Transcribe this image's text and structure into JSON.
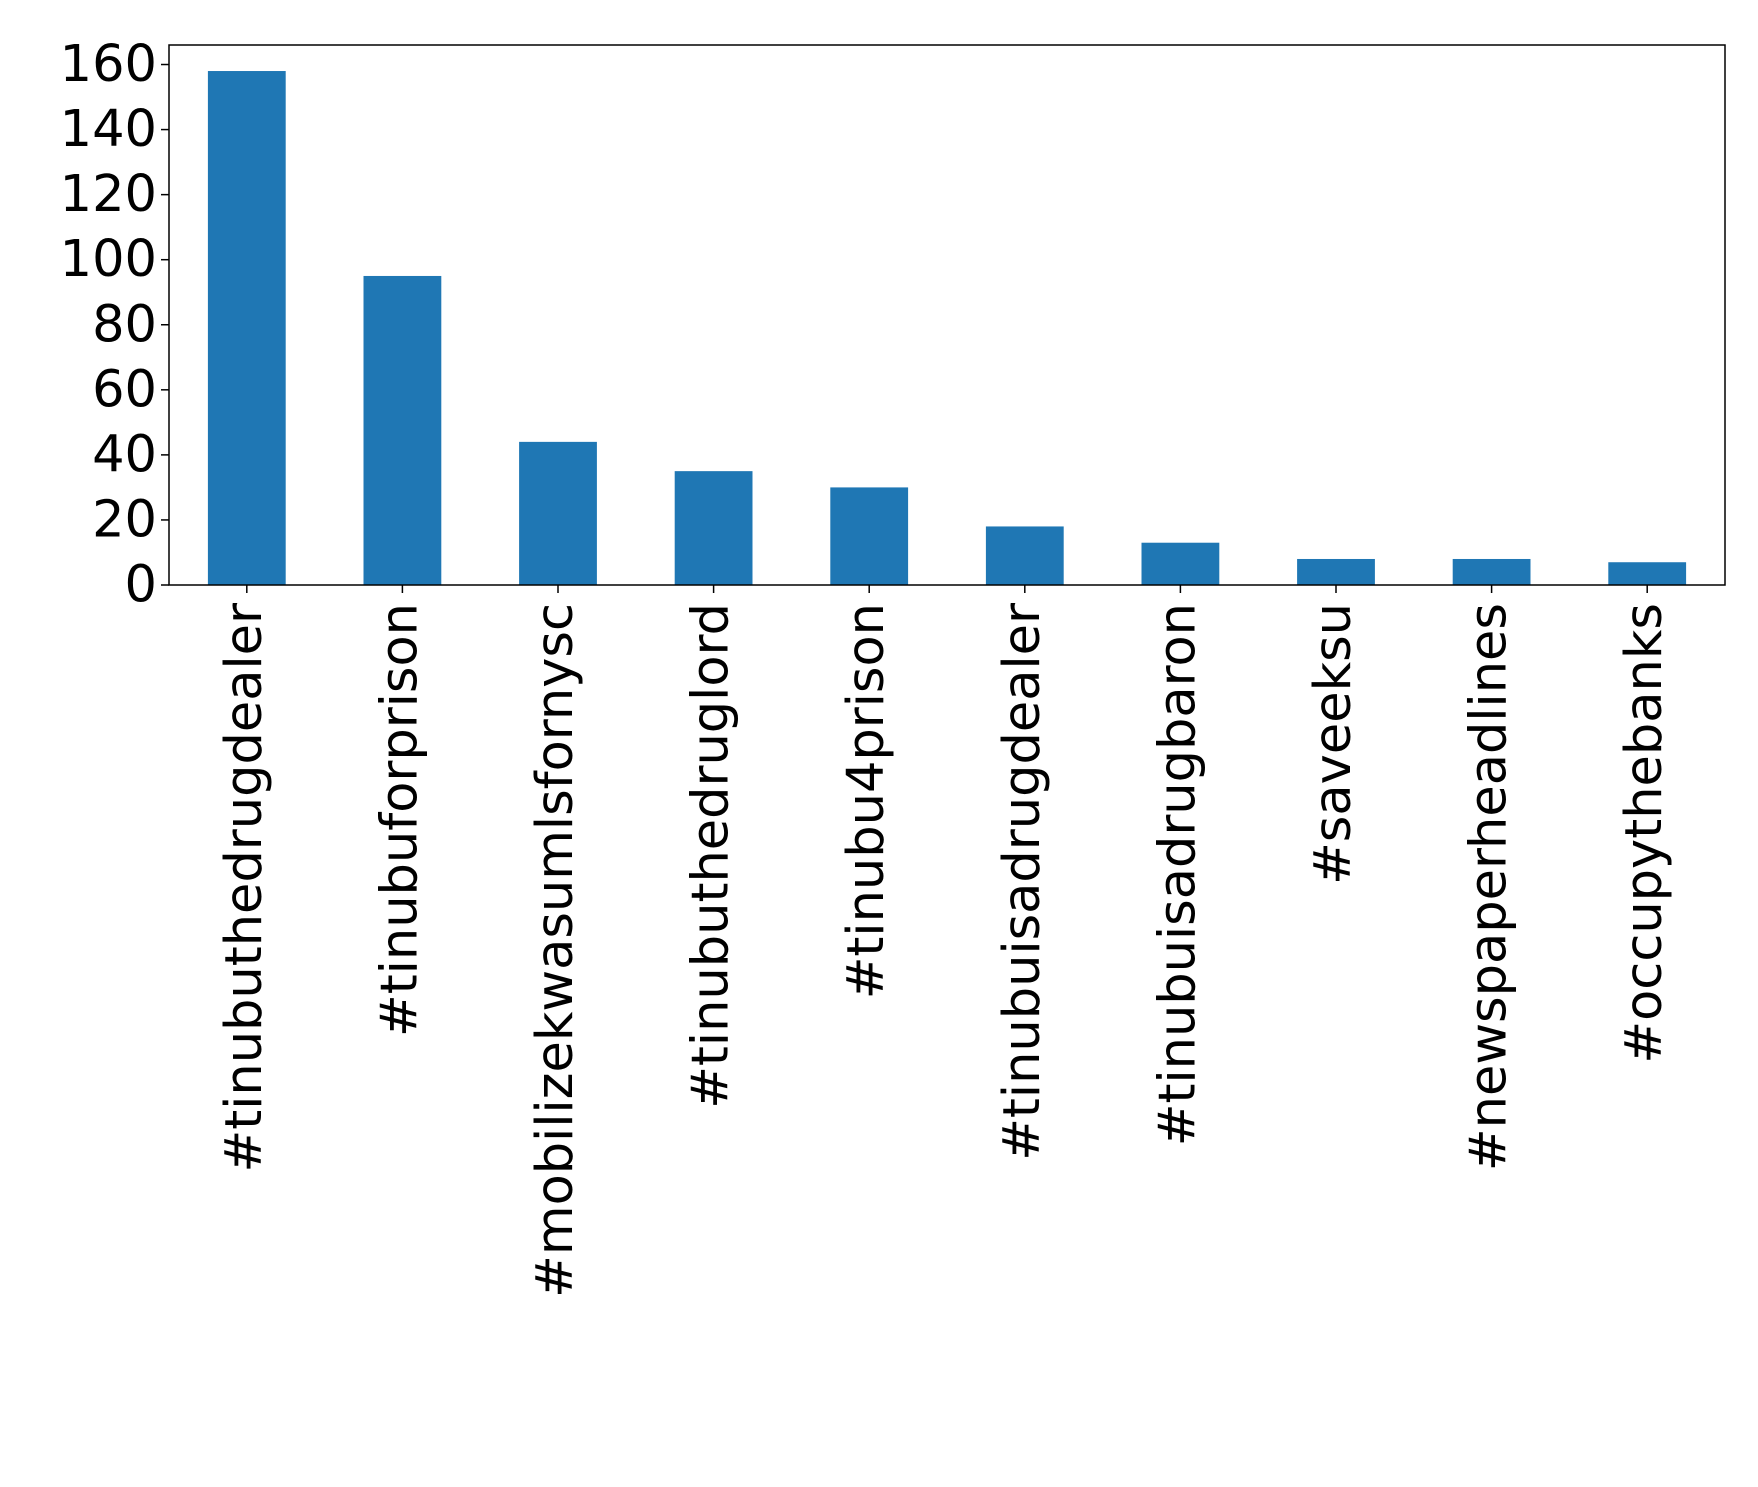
{
  "chart_data": {
    "type": "bar",
    "title": "",
    "xlabel": "",
    "ylabel": "",
    "categories": [
      "#tinubuthedrugdealer",
      "#tinubuforprison",
      "#mobilizekwasumlsfornysc",
      "#tinubuthedruglord",
      "#tinubu4prison",
      "#tinubuisadrugdealer",
      "#tinubuisadrugbaron",
      "#saveeksu",
      "#newspaperheadlines",
      "#occupythebanks"
    ],
    "values": [
      158,
      95,
      44,
      35,
      30,
      18,
      13,
      8,
      8,
      7
    ],
    "ylim": [
      0,
      166
    ],
    "yticks": [
      0,
      20,
      40,
      60,
      80,
      100,
      120,
      140,
      160
    ],
    "grid": false,
    "legend": "none",
    "bar_color": "#1f77b4",
    "x_tick_rotation": "vertical"
  }
}
